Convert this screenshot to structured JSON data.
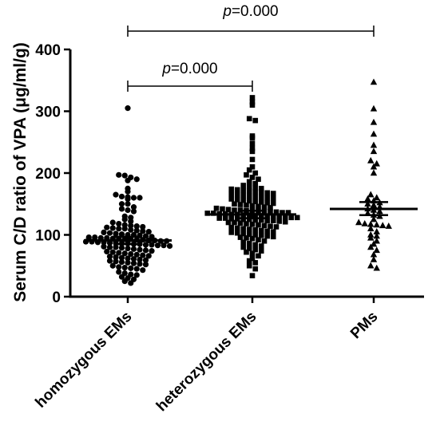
{
  "chart_data": {
    "type": "scatter",
    "ylabel": "Serum C/D ratio of VPA (μg/ml/g)",
    "ylim": [
      0,
      400
    ],
    "yticks": [
      0,
      100,
      200,
      300,
      400
    ],
    "categories": [
      "homozygous EMs",
      "heterozygous EMs",
      "PMs"
    ],
    "series": [
      {
        "category": "homozygous EMs",
        "marker": "circle",
        "mean": 91,
        "ci": [
          85,
          97
        ],
        "values": [
          305,
          197,
          196,
          193,
          190,
          188,
          175,
          170,
          165,
          162,
          161,
          160,
          160,
          158,
          150,
          150,
          145,
          142,
          140,
          138,
          130,
          128,
          125,
          122,
          120,
          118,
          116,
          115,
          114,
          113,
          112,
          111,
          110,
          110,
          108,
          107,
          106,
          105,
          104,
          103,
          102,
          101,
          100,
          100,
          99,
          98,
          97,
          96,
          96,
          95,
          95,
          94,
          94,
          93,
          93,
          92,
          92,
          91,
          91,
          90,
          90,
          89,
          89,
          88,
          88,
          87,
          87,
          86,
          86,
          85,
          85,
          84,
          84,
          83,
          83,
          82,
          81,
          80,
          80,
          79,
          78,
          77,
          76,
          75,
          74,
          73,
          72,
          71,
          70,
          69,
          68,
          67,
          66,
          65,
          64,
          63,
          62,
          61,
          60,
          59,
          58,
          57,
          56,
          55,
          54,
          53,
          52,
          50,
          48,
          47,
          46,
          45,
          43,
          40,
          38,
          36,
          35,
          32,
          30,
          28,
          25,
          22
        ]
      },
      {
        "category": "heterozygous EMs",
        "marker": "square",
        "mean": 133,
        "ci": [
          127,
          139
        ],
        "values": [
          322,
          315,
          310,
          288,
          285,
          260,
          257,
          248,
          240,
          235,
          222,
          210,
          205,
          200,
          197,
          193,
          190,
          186,
          183,
          180,
          178,
          176,
          175,
          174,
          173,
          172,
          171,
          170,
          169,
          168,
          167,
          166,
          165,
          164,
          163,
          162,
          161,
          160,
          159,
          158,
          157,
          156,
          155,
          154,
          153,
          152,
          151,
          150,
          149,
          148,
          147,
          146,
          145,
          144,
          143,
          142,
          141,
          140,
          140,
          139,
          139,
          138,
          138,
          137,
          137,
          136,
          136,
          135,
          135,
          134,
          134,
          133,
          133,
          132,
          132,
          131,
          131,
          130,
          130,
          129,
          129,
          128,
          128,
          127,
          127,
          126,
          126,
          125,
          125,
          124,
          124,
          123,
          123,
          122,
          121,
          120,
          120,
          119,
          118,
          117,
          116,
          115,
          114,
          113,
          112,
          111,
          110,
          109,
          108,
          107,
          106,
          105,
          104,
          103,
          102,
          101,
          100,
          99,
          98,
          97,
          96,
          95,
          94,
          92,
          90,
          88,
          86,
          84,
          82,
          80,
          78,
          76,
          74,
          72,
          70,
          66,
          62,
          58,
          55,
          50,
          45,
          34
        ]
      },
      {
        "category": "PMs",
        "marker": "triangle",
        "mean": 142,
        "ci": [
          132,
          153
        ],
        "values": [
          347,
          304,
          282,
          263,
          245,
          235,
          220,
          215,
          210,
          200,
          165,
          160,
          158,
          155,
          152,
          150,
          148,
          145,
          142,
          140,
          138,
          135,
          132,
          130,
          125,
          120,
          118,
          117,
          116,
          115,
          114,
          110,
          105,
          100,
          98,
          95,
          90,
          85,
          80,
          75,
          68,
          60,
          50,
          46
        ]
      }
    ],
    "annotations": [
      {
        "from": "homozygous EMs",
        "to": "heterozygous EMs",
        "prefix": "p",
        "text": "=0.000"
      },
      {
        "from": "homozygous EMs",
        "to": "PMs",
        "prefix": "p",
        "text": "=0.000"
      }
    ]
  }
}
